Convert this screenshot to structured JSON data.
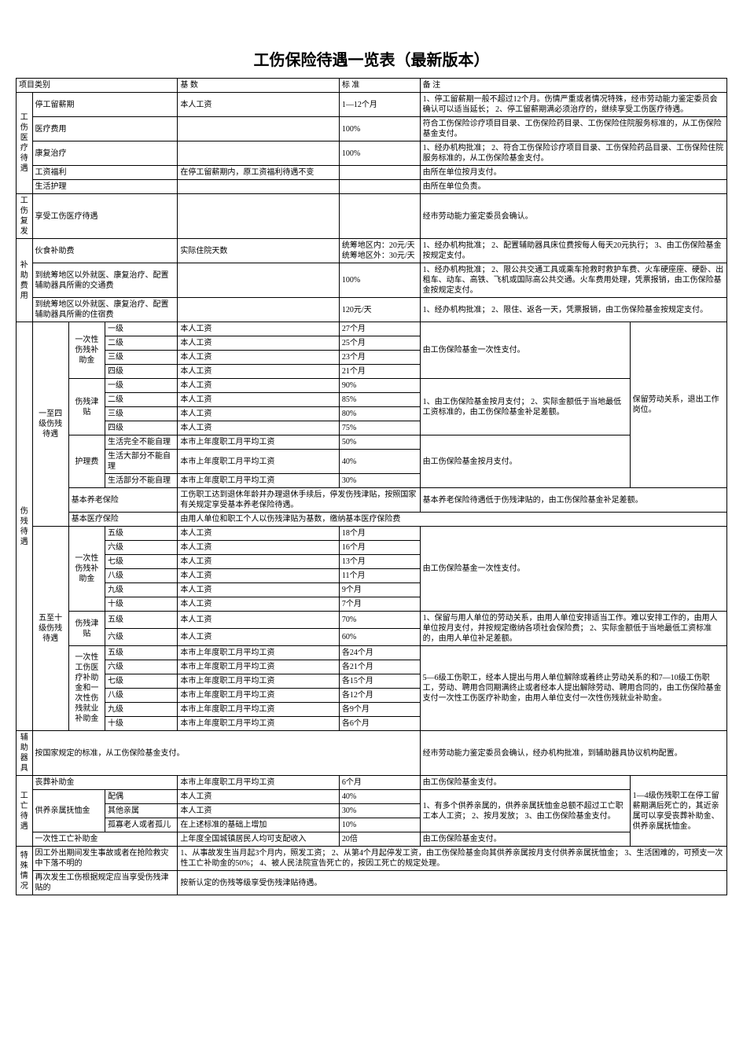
{
  "title": "工伤保险待遇一览表（最新版本）",
  "headers": {
    "category": "项目类别",
    "base": "基 数",
    "standard": "标 准",
    "note": "备 注"
  },
  "sec1": {
    "label": "工伤医疗待遇",
    "r1": {
      "name": "停工留薪期",
      "base": "本人工资",
      "std": "1—12个月",
      "note": "1、停工留薪期一般不超过12个月。伤情严重或者情况特殊，经市劳动能力鉴定委员会确认可以适当延长；\n2、停工留薪期满必须治疗的，继续享受工伤医疗待遇。"
    },
    "r2": {
      "name": "医疗费用",
      "std": "100%",
      "note": "符合工伤保险诊疗项目目录、工伤保险药目录、工伤保险住院服务标准的，从工伤保险基金支付。"
    },
    "r3": {
      "name": "康复治疗",
      "std": "100%",
      "note": "1、经办机构批准；\n2、符合工伤保险诊疗项目目录、工伤保险药品目录、工伤保险住院服务标准的，从工伤保险基金支付。"
    },
    "r4": {
      "name": "工资福利",
      "base": "在停工留薪期内，原工资福利待遇不变",
      "note": "由所在单位按月支付。"
    },
    "r5": {
      "name": "生活护理",
      "note": "由所在单位负责。"
    }
  },
  "sec2": {
    "label": "工伤复发",
    "r1": {
      "name": "享受工伤医疗待遇",
      "note": "经市劳动能力鉴定委员会确认。"
    }
  },
  "sec3": {
    "label": "补助费用",
    "r1": {
      "name": "伙食补助费",
      "base": "实际住院天数",
      "std": "统筹地区内：20元/天\n统筹地区外：30元/天",
      "note": "1、经办机构批准；\n2、配置辅助器具床位费按每人每天20元执行；\n3、由工伤保险基金按规定支付。"
    },
    "r2": {
      "name": "到统筹地区以外就医、康复治疗、配置辅助器具所需的交通费",
      "std": "100%",
      "note": "1、经办机构批准；\n2、限公共交通工具或乘车抢救时救护车费、火车硬座座、硬卧、出租车、动车、高铁、飞机或国际高公共交通。火车费用处理，凭票报销，由工伤保险基金按规定支付。"
    },
    "r3": {
      "name": "到统筹地区以外就医、康复治疗、配置辅助器具所需的住宿费",
      "std": "120元/天",
      "note": "1、经办机构批准；\n2、限住、返各一天，凭票报销，由工伤保险基金按规定支付。"
    }
  },
  "sec4": {
    "label": "伤残待遇",
    "g1": {
      "label": "一至四级伤残待遇",
      "sub1": {
        "label": "一次性伤残补助金",
        "rows": [
          {
            "lvl": "一级",
            "base": "本人工资",
            "std": "27个月"
          },
          {
            "lvl": "二级",
            "base": "本人工资",
            "std": "25个月"
          },
          {
            "lvl": "三级",
            "base": "本人工资",
            "std": "23个月"
          },
          {
            "lvl": "四级",
            "base": "本人工资",
            "std": "21个月"
          }
        ],
        "note": "由工伤保险基金一次性支付。"
      },
      "sub2": {
        "label": "伤残津贴",
        "rows": [
          {
            "lvl": "一级",
            "base": "本人工资",
            "std": "90%"
          },
          {
            "lvl": "二级",
            "base": "本人工资",
            "std": "85%"
          },
          {
            "lvl": "三级",
            "base": "本人工资",
            "std": "80%"
          },
          {
            "lvl": "四级",
            "base": "本人工资",
            "std": "75%"
          }
        ],
        "note": "1、由工伤保险基金按月支付；\n2、实际金额低于当地最低工资标准的，由工伤保险基金补足差额。"
      },
      "sub3": {
        "label": "护理费",
        "rows": [
          {
            "lvl": "生活完全不能自理",
            "base": "本市上年度职工月平均工资",
            "std": "50%"
          },
          {
            "lvl": "生活大部分不能自理",
            "base": "本市上年度职工月平均工资",
            "std": "40%"
          },
          {
            "lvl": "生活部分不能自理",
            "base": "本市上年度职工月平均工资",
            "std": "30%"
          }
        ],
        "note": "由工伤保险基金按月支付。"
      },
      "sub4": {
        "name": "基本养老保险",
        "base": "工伤职工达到退休年龄并办理退休手续后，停发伤残津贴，按照国家有关规定享受基本养老保险待遇。",
        "note": "基本养老保险待遇低于伤残津贴的，由工伤保险基金补足差额。"
      },
      "sub5": {
        "name": "基本医疗保险",
        "base": "由用人单位和职工个人以伤残津贴为基数，缴纳基本医疗保险费"
      },
      "sideNote": "保留劳动关系，退出工作岗位。"
    },
    "g2": {
      "label": "五至十级伤残待遇",
      "sub1": {
        "label": "一次性伤残补助金",
        "rows": [
          {
            "lvl": "五级",
            "base": "本人工资",
            "std": "18个月"
          },
          {
            "lvl": "六级",
            "base": "本人工资",
            "std": "16个月"
          },
          {
            "lvl": "七级",
            "base": "本人工资",
            "std": "13个月"
          },
          {
            "lvl": "八级",
            "base": "本人工资",
            "std": "11个月"
          },
          {
            "lvl": "九级",
            "base": "本人工资",
            "std": "9个月"
          },
          {
            "lvl": "十级",
            "base": "本人工资",
            "std": "7个月"
          }
        ],
        "note": "由工伤保险基金一次性支付。"
      },
      "sub2": {
        "label": "伤残津贴",
        "rows": [
          {
            "lvl": "五级",
            "base": "本人工资",
            "std": "70%"
          },
          {
            "lvl": "六级",
            "base": "本人工资",
            "std": "60%"
          }
        ],
        "note": "1、保留与用人单位的劳动关系，由用人单位安排适当工作。难以安排工作的，由用人单位按月支付，并按规定缴纳各项社会保险费；\n2、实际金额低于当地最低工资标准的，由用人单位补足差额。"
      },
      "sub3": {
        "label": "一次性工伤医疗补助金和一次性伤残就业补助金",
        "rows": [
          {
            "lvl": "五级",
            "base": "本市上年度职工月平均工资",
            "std": "各24个月"
          },
          {
            "lvl": "六级",
            "base": "本市上年度职工月平均工资",
            "std": "各21个月"
          },
          {
            "lvl": "七级",
            "base": "本市上年度职工月平均工资",
            "std": "各15个月"
          },
          {
            "lvl": "八级",
            "base": "本市上年度职工月平均工资",
            "std": "各12个月"
          },
          {
            "lvl": "九级",
            "base": "本市上年度职工月平均工资",
            "std": "各9个月"
          },
          {
            "lvl": "十级",
            "base": "本市上年度职工月平均工资",
            "std": "各6个月"
          }
        ],
        "note": "5—6级工伤职工，经本人提出与用人单位解除或着终止劳动关系的和7—10级工伤职工，劳动、聘用合同期满终止或者经本人提出解除劳动、聘用合同的，由工伤保险基金支付一次性工伤医疗补助金，由用人单位支付一次性伤残就业补助金。"
      }
    }
  },
  "sec5": {
    "label": "辅助器具",
    "text": "按国家规定的标准，从工伤保险基金支付。",
    "note": "经市劳动能力鉴定委员会确认，经办机构批准，到辅助器具协议机构配置。"
  },
  "sec6": {
    "label": "工亡待遇",
    "r1": {
      "name": "丧葬补助金",
      "base": "本市上年度职工月平均工资",
      "std": "6个月",
      "note": "由工伤保险基金支付。"
    },
    "r2": {
      "name": "供养亲属抚恤金",
      "rows": [
        {
          "lvl": "配偶",
          "base": "本人工资",
          "std": "40%"
        },
        {
          "lvl": "其他亲属",
          "base": "本人工资",
          "std": "30%"
        },
        {
          "lvl": "孤寡老人或者孤儿",
          "base": "在上述标准的基础上增加",
          "std": "10%"
        }
      ],
      "note": "1、有多个供养亲属的，供养亲属抚恤金总额不超过工亡职工本人工资；\n2、按月发放；\n3、由工伤保险基金支付。"
    },
    "r3": {
      "name": "一次性工亡补助金",
      "base": "上年度全国城镇居民人均可支配收入",
      "std": "20倍",
      "note": "由工伤保险基金支付。"
    },
    "sideNote": "1—4级伤残职工在停工留薪期满后死亡的，其近亲属可以享受丧葬补助金、供养亲属抚恤金。"
  },
  "sec7": {
    "label": "特殊情况",
    "r1": {
      "name": "因工外出期间发生事故或者在抢险救灾中下落不明的",
      "base": "1、从事故发生当月起3个月内，照发工资；\n2、从第4个月起停发工资，由工伤保险基金向其供养亲属按月支付供养亲属抚恤金；\n3、生活困难的，可预支一次性工亡补助金的50%；\n4、被人民法院宣告死亡的，按因工死亡的规定处理。"
    },
    "r2": {
      "name": "再次发生工伤根据规定应当享受伤残津贴的",
      "base": "按新认定的伤残等级享受伤残津贴待遇。"
    }
  }
}
